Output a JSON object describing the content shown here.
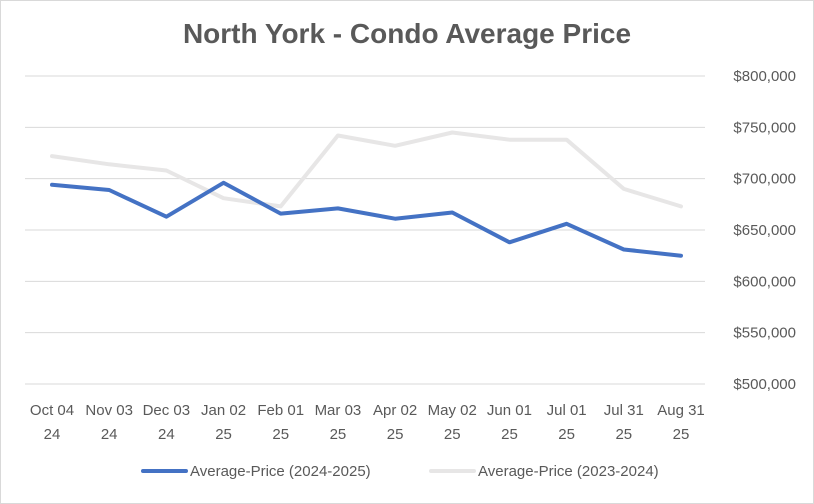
{
  "chart_data": {
    "type": "line",
    "title": "North York - Condo Average Price",
    "xlabel": "",
    "ylabel": "",
    "ylim": [
      500000,
      800000
    ],
    "y_ticks": [
      500000,
      550000,
      600000,
      650000,
      700000,
      750000,
      800000
    ],
    "y_tick_labels": [
      "$500,000",
      "$550,000",
      "$600,000",
      "$650,000",
      "$700,000",
      "$750,000",
      "$800,000"
    ],
    "grid": true,
    "legend_position": "bottom",
    "categories": [
      [
        "Oct 04",
        "24"
      ],
      [
        "Nov 03",
        "24"
      ],
      [
        "Dec 03",
        "24"
      ],
      [
        "Jan 02",
        "25"
      ],
      [
        "Feb 01",
        "25"
      ],
      [
        "Mar 03",
        "25"
      ],
      [
        "Apr 02",
        "25"
      ],
      [
        "May 02",
        "25"
      ],
      [
        "Jun 01",
        "25"
      ],
      [
        "Jul 01",
        "25"
      ],
      [
        "Jul 31",
        "25"
      ],
      [
        "Aug 31",
        "25"
      ]
    ],
    "series": [
      {
        "name": "Average-Price (2024-2025)",
        "color": "#4472c4",
        "values": [
          694000,
          689000,
          663000,
          696000,
          666000,
          671000,
          661000,
          667000,
          638000,
          656000,
          631000,
          625000
        ]
      },
      {
        "name": "Average-Price (2023-2024)",
        "color": "#e7e6e6",
        "values": [
          722000,
          714000,
          708000,
          681000,
          673000,
          742000,
          732000,
          745000,
          738000,
          738000,
          690000,
          673000
        ]
      }
    ]
  }
}
